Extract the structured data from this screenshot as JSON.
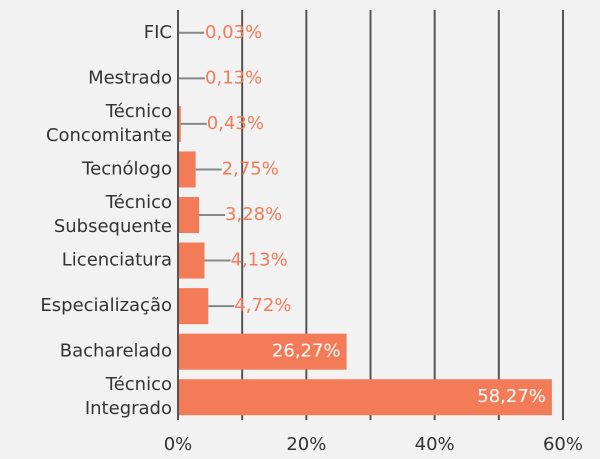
{
  "chart_data": {
    "type": "barh",
    "categories": [
      "FIC",
      "Mestrado",
      "Técnico\nConcomitante",
      "Tecnólogo",
      "Técnico\nSubsequente",
      "Licenciatura",
      "Especialização",
      "Bacharelado",
      "Técnico\nIntegrado"
    ],
    "values": [
      0.03,
      0.13,
      0.43,
      2.75,
      3.28,
      4.13,
      4.72,
      26.27,
      58.27
    ],
    "value_labels": [
      "0,03%",
      "0,13%",
      "0,43%",
      "2,75%",
      "3,28%",
      "4,13%",
      "4,72%",
      "26,27%",
      "58,27%"
    ],
    "color": "#f47b57",
    "xlim": [
      0,
      60
    ],
    "xticks": [
      {
        "value": 0,
        "label": "0%"
      },
      {
        "value": 20,
        "label": "20%"
      },
      {
        "value": 40,
        "label": "40%"
      },
      {
        "value": 60,
        "label": "60%"
      }
    ],
    "xminorticks": [
      10,
      30,
      50
    ],
    "grid": true
  }
}
